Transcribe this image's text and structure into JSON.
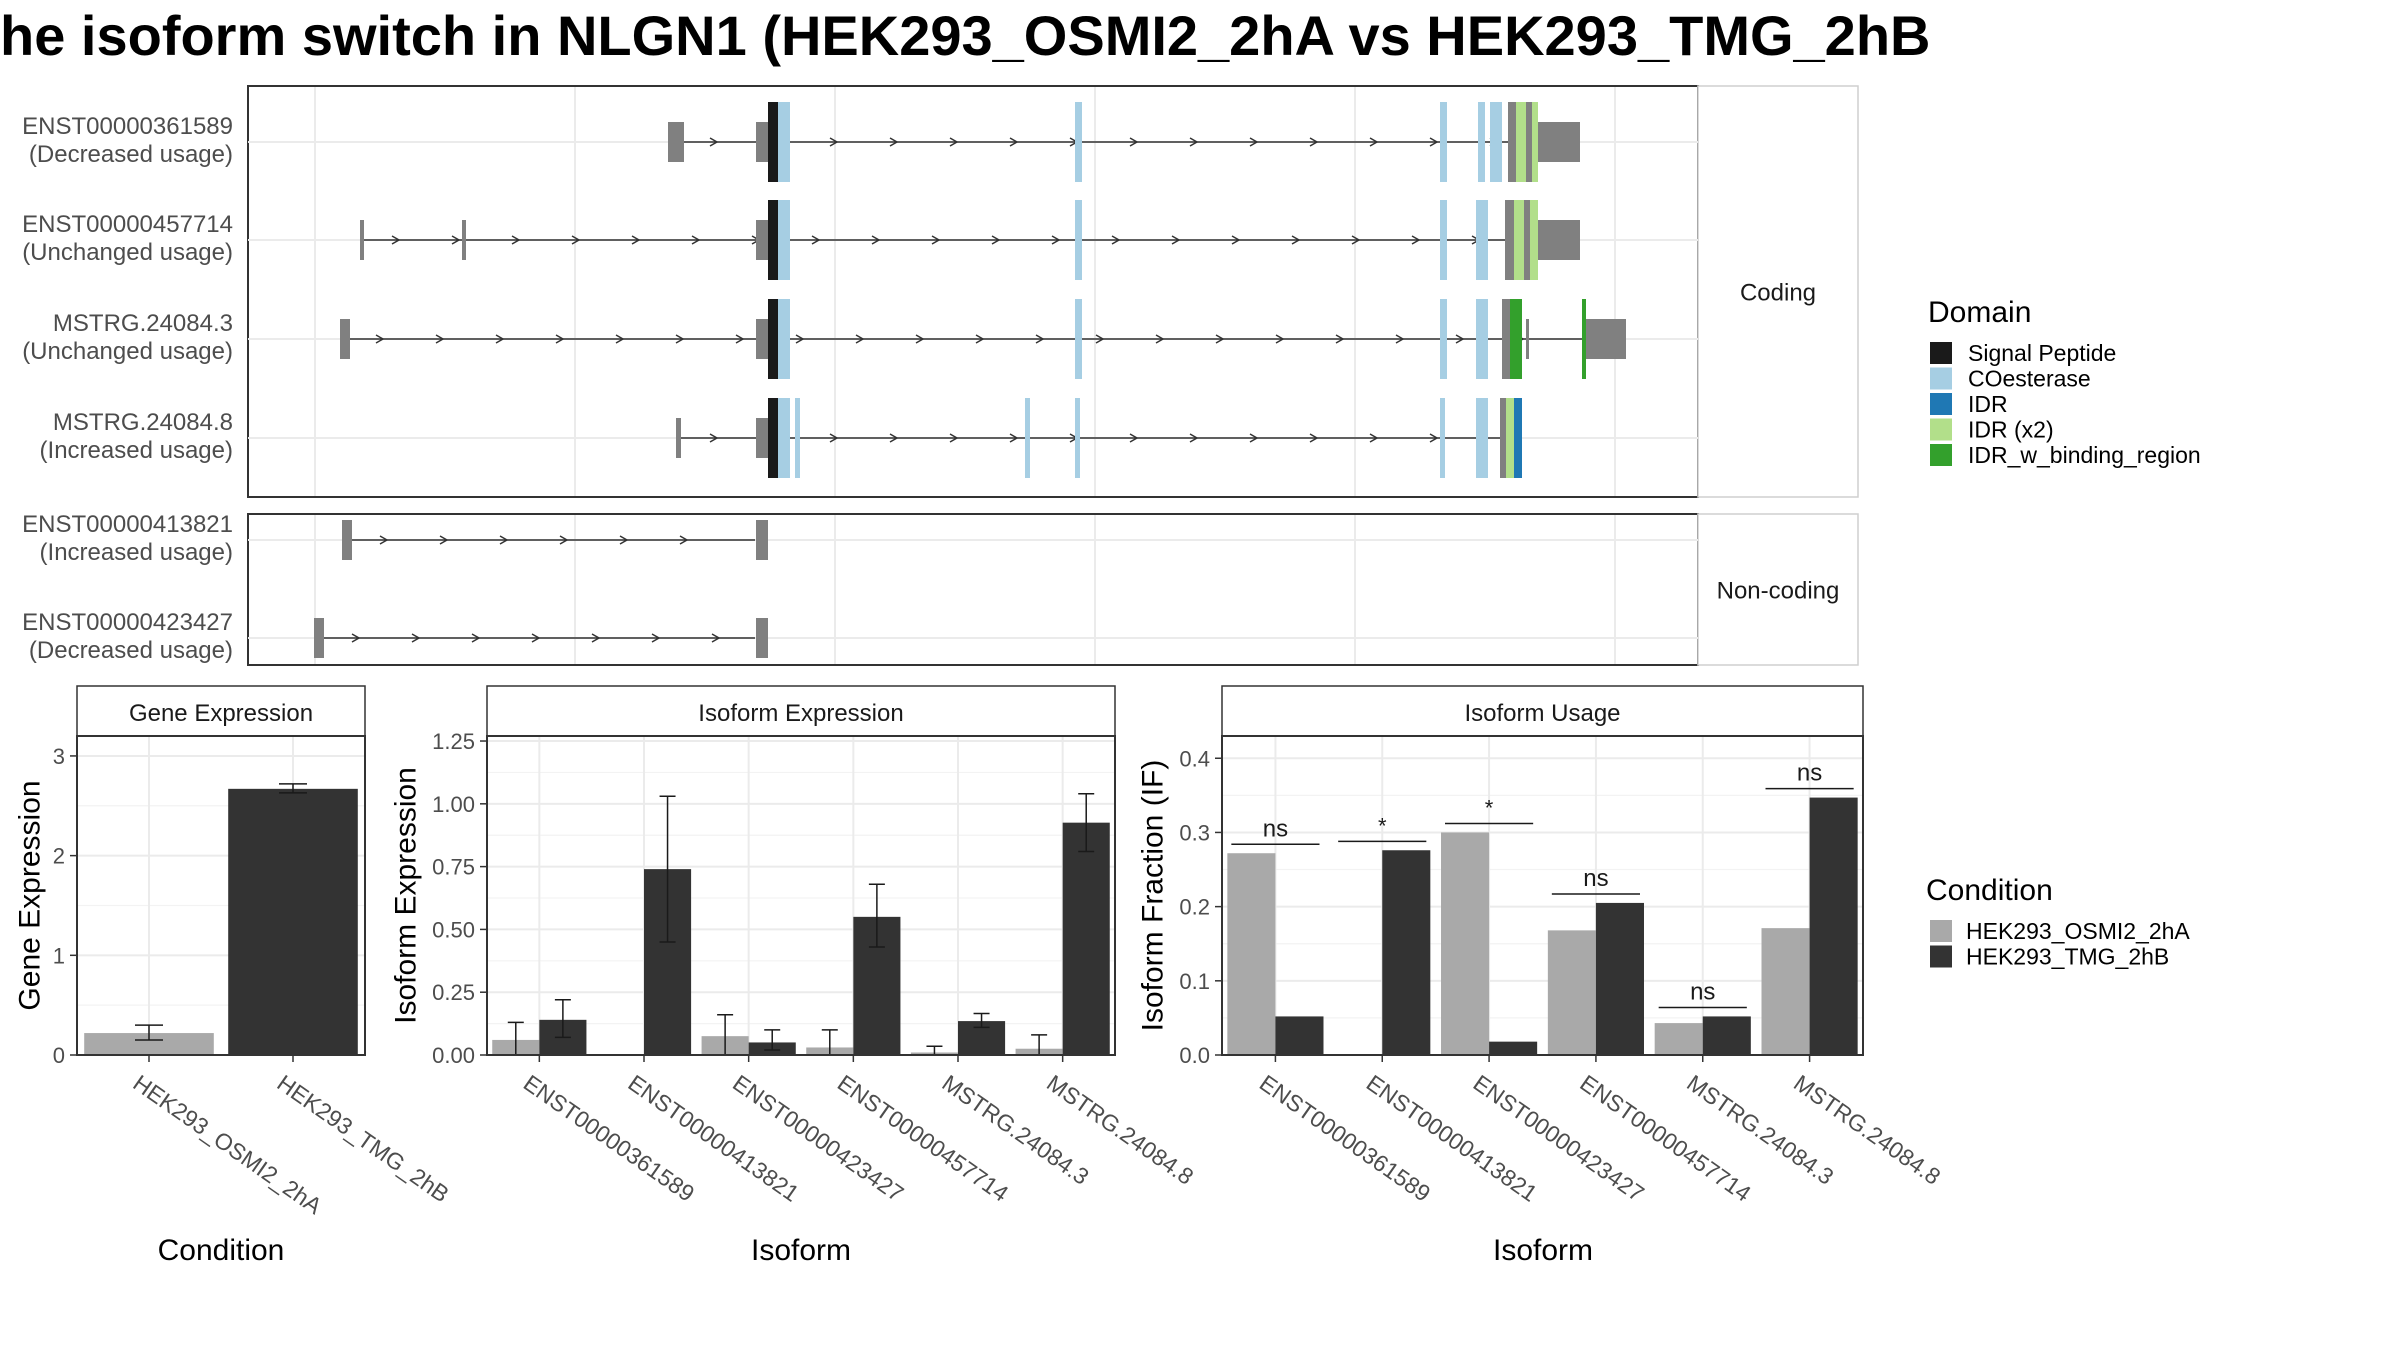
{
  "title": "he isoform switch in NLGN1 (HEK293_OSMI2_2hA vs HEK293_TMG_2hB",
  "colors": {
    "signal_peptide": "#1a1a1a",
    "coesterase": "#a6cee3",
    "idr": "#1f78b4",
    "idr_x2": "#b2df8a",
    "idr_binding": "#33a02c",
    "exon_grey": "#808080",
    "cond1": "#a9a9a9",
    "cond2": "#333333",
    "grid": "#ebebeb",
    "strip_text": "#1a1a1a"
  },
  "structure": {
    "coding_label": "Coding",
    "noncoding_label": "Non-coding",
    "coding_rows": [
      {
        "id": "ENST00000361589",
        "status": "(Decreased usage)"
      },
      {
        "id": "ENST00000457714",
        "status": "(Unchanged usage)"
      },
      {
        "id": "MSTRG.24084.3",
        "status": "(Unchanged usage)"
      },
      {
        "id": "MSTRG.24084.8",
        "status": "(Increased usage)"
      }
    ],
    "noncoding_rows": [
      {
        "id": "ENST00000413821",
        "status": "(Increased usage)"
      },
      {
        "id": "ENST00000423427",
        "status": "(Decreased usage)"
      }
    ]
  },
  "domain_legend": {
    "title": "Domain",
    "items": [
      {
        "label": "Signal Peptide",
        "color": "#1a1a1a"
      },
      {
        "label": "COesterase",
        "color": "#a6cee3"
      },
      {
        "label": "IDR",
        "color": "#1f78b4"
      },
      {
        "label": "IDR (x2)",
        "color": "#b2df8a"
      },
      {
        "label": "IDR_w_binding_region",
        "color": "#33a02c"
      }
    ]
  },
  "condition_legend": {
    "title": "Condition",
    "items": [
      {
        "label": "HEK293_OSMI2_2hA",
        "color": "#a9a9a9"
      },
      {
        "label": "HEK293_TMG_2hB",
        "color": "#333333"
      }
    ]
  },
  "chart_data": [
    {
      "type": "bar",
      "title": "Gene Expression",
      "xlabel": "Condition",
      "ylabel": "Gene Expression",
      "ylim": [
        0,
        3.2
      ],
      "yticks": [
        "0",
        "1",
        "2",
        "3"
      ],
      "categories": [
        "HEK293_OSMI2_2hA",
        "HEK293_TMG_2hB"
      ],
      "values": [
        0.22,
        2.67
      ],
      "errors": [
        [
          0.15,
          0.3
        ],
        [
          2.63,
          2.72
        ]
      ]
    },
    {
      "type": "bar",
      "title": "Isoform Expression",
      "xlabel": "Isoform",
      "ylabel": "Isoform Expression",
      "ylim": [
        0,
        1.27
      ],
      "yticks": [
        "0.00",
        "0.25",
        "0.50",
        "0.75",
        "1.00",
        "1.25"
      ],
      "categories": [
        "ENST00000361589",
        "ENST00000413821",
        "ENST00000423427",
        "ENST00000457714",
        "MSTRG.24084.3",
        "MSTRG.24084.8"
      ],
      "series": [
        {
          "name": "HEK293_OSMI2_2hA",
          "values": [
            0.06,
            0.0,
            0.075,
            0.03,
            0.01,
            0.025
          ],
          "errors": [
            [
              0.0,
              0.13
            ],
            [
              0.0,
              0.0
            ],
            [
              0.0,
              0.16
            ],
            [
              0.0,
              0.1
            ],
            [
              0.0,
              0.035
            ],
            [
              0.0,
              0.08
            ]
          ]
        },
        {
          "name": "HEK293_TMG_2hB",
          "values": [
            0.14,
            0.74,
            0.05,
            0.55,
            0.135,
            0.925
          ],
          "errors": [
            [
              0.07,
              0.22
            ],
            [
              0.45,
              1.03
            ],
            [
              0.02,
              0.1
            ],
            [
              0.43,
              0.68
            ],
            [
              0.11,
              0.165
            ],
            [
              0.81,
              1.04
            ]
          ]
        }
      ]
    },
    {
      "type": "bar",
      "title": "Isoform Usage",
      "xlabel": "Isoform",
      "ylabel": "Isoform Fraction (IF)",
      "ylim": [
        0,
        0.43
      ],
      "yticks": [
        "0.0",
        "0.1",
        "0.2",
        "0.3",
        "0.4"
      ],
      "categories": [
        "ENST00000361589",
        "ENST00000413821",
        "ENST00000423427",
        "ENST00000457714",
        "MSTRG.24084.3",
        "MSTRG.24084.8"
      ],
      "series": [
        {
          "name": "HEK293_OSMI2_2hA",
          "values": [
            0.272,
            0.0,
            0.3,
            0.168,
            0.043,
            0.171
          ]
        },
        {
          "name": "HEK293_TMG_2hB",
          "values": [
            0.052,
            0.276,
            0.018,
            0.205,
            0.052,
            0.347
          ]
        }
      ],
      "significance": [
        "ns",
        "*",
        "*",
        "ns",
        "ns",
        "ns"
      ]
    }
  ]
}
